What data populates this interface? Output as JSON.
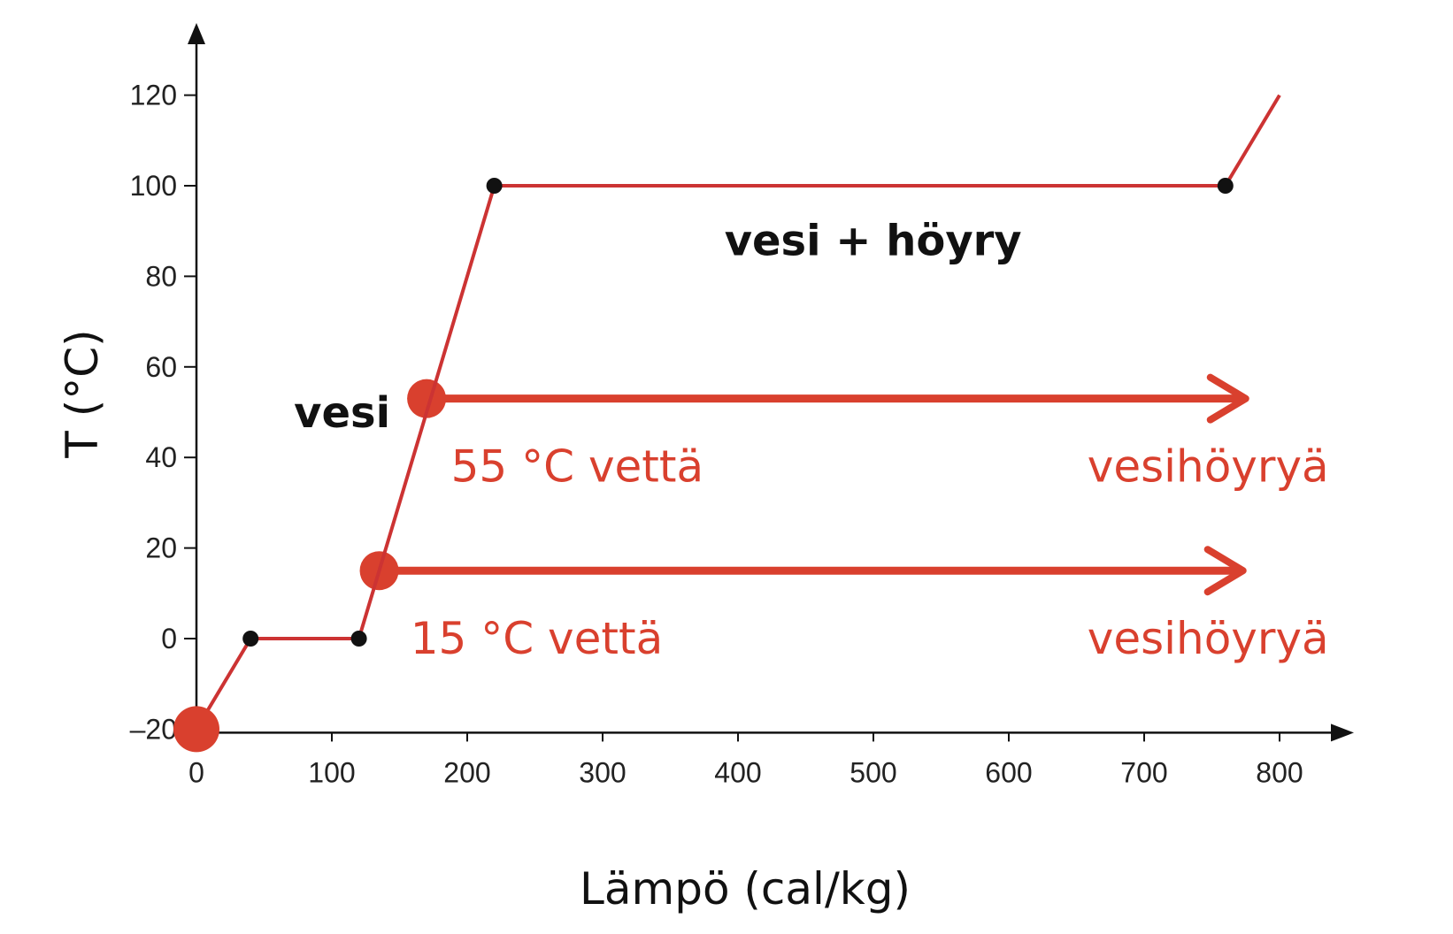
{
  "chart_data": {
    "type": "line",
    "title": "",
    "xlabel": "Lämpö (cal/kg)",
    "ylabel": "T (°C)",
    "xlim": [
      0,
      820
    ],
    "ylim": [
      -20,
      130
    ],
    "x_ticks": [
      0,
      100,
      200,
      300,
      400,
      500,
      600,
      700,
      800
    ],
    "y_ticks": [
      -20,
      0,
      20,
      40,
      60,
      80,
      100,
      120
    ],
    "tick_labels_x": [
      "0",
      "100",
      "200",
      "300",
      "400",
      "500",
      "600",
      "700",
      "800"
    ],
    "tick_labels_y": [
      "–20",
      "0",
      "20",
      "40",
      "60",
      "80",
      "100",
      "120"
    ],
    "series": [
      {
        "x": [
          0,
          40,
          120,
          220,
          760,
          800
        ],
        "y": [
          -20,
          0,
          0,
          100,
          100,
          120
        ],
        "color": "#cc3333"
      }
    ],
    "vertex_markers": [
      {
        "x": 40,
        "y": 0
      },
      {
        "x": 120,
        "y": 0
      },
      {
        "x": 220,
        "y": 100
      },
      {
        "x": 760,
        "y": 100
      }
    ],
    "start_marker": {
      "x": 0,
      "y": -20,
      "color": "#d9402e"
    },
    "annotations": [
      {
        "text": "vesi + höyry",
        "x": 390,
        "y": 88,
        "style": "black"
      },
      {
        "text": "vesi",
        "x": 72,
        "y": 50,
        "style": "black"
      },
      {
        "text": "55 °C vettä",
        "x": 188,
        "y": 38,
        "style": "red"
      },
      {
        "text": "vesihöyryä",
        "x": 658,
        "y": 38,
        "style": "red"
      },
      {
        "text": "15 °C vettä",
        "x": 158,
        "y": 0,
        "style": "red"
      },
      {
        "text": "vesihöyryä",
        "x": 658,
        "y": 0,
        "style": "red"
      }
    ],
    "arrows": [
      {
        "from_x": 170,
        "to_x": 775,
        "y": 53,
        "label_start": "55 °C vettä",
        "label_end": "vesihöyryä"
      },
      {
        "from_x": 135,
        "to_x": 773,
        "y": 15,
        "label_start": "15 °C vettä",
        "label_end": "vesihöyryä"
      }
    ],
    "grid": false,
    "colors": {
      "line": "#cc3333",
      "marker": "#111111",
      "accent": "#d9402e"
    }
  }
}
